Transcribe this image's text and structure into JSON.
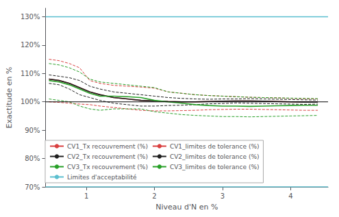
{
  "chart_data": {
    "type": "line",
    "x": [
      0.45,
      0.6,
      0.75,
      0.9,
      1.05,
      1.2,
      1.4,
      1.6,
      1.8,
      2.0,
      2.2,
      2.4,
      2.6,
      2.8,
      3.0,
      3.2,
      3.4,
      3.6,
      3.8,
      4.0,
      4.2,
      4.4
    ],
    "xlabel": "Niveau d'N en %",
    "ylabel": "Exactitude en %",
    "xlim": [
      0.4,
      4.55
    ],
    "ylim": [
      70,
      133
    ],
    "xticks": [
      1,
      2,
      3,
      4
    ],
    "yticks": [
      {
        "value": 70,
        "label": "70%"
      },
      {
        "value": 80,
        "label": "80%"
      },
      {
        "value": 90,
        "label": "90%"
      },
      {
        "value": 100,
        "label": "100%"
      },
      {
        "value": 110,
        "label": "110%"
      },
      {
        "value": 120,
        "label": "120%"
      },
      {
        "value": 130,
        "label": "130%"
      }
    ],
    "grid": false,
    "legend": "lower left",
    "series": [
      {
        "name": "CV1_Tx recouvrement (%)",
        "color": "#d94040",
        "line_style": "solid",
        "values": [
          108.0,
          107.5,
          106.5,
          105.0,
          103.5,
          102.5,
          101.5,
          101.0,
          100.5,
          100.3,
          100.1,
          100.0,
          100.0,
          100.1,
          100.2,
          100.3,
          100.3,
          100.2,
          100.1,
          100.0,
          99.9,
          99.9
        ]
      },
      {
        "name": "CV1_limites de tolerance (%)",
        "color": "#d94040",
        "line_style": "dashed",
        "values": [
          115.0,
          114.5,
          113.5,
          112.0,
          107.5,
          106.5,
          105.8,
          105.5,
          105.2,
          104.8,
          103.5,
          103.0,
          102.5,
          102.2,
          102.0,
          101.8,
          101.6,
          101.5,
          101.4,
          101.2,
          101.1,
          101.0
        ]
      },
      {
        "name": "CV1_limites de tolerance (%)",
        "color": "#d94040",
        "line_style": "dashed",
        "values": [
          100.0,
          99.8,
          99.5,
          99.2,
          99.0,
          98.5,
          98.0,
          97.5,
          97.0,
          96.8,
          96.8,
          96.9,
          97.0,
          97.2,
          97.3,
          97.4,
          97.4,
          97.3,
          97.2,
          97.1,
          97.0,
          97.0
        ]
      },
      {
        "name": "CV2_Tx recouvrement (%)",
        "color": "#202020",
        "line_style": "solid",
        "values": [
          108.0,
          107.5,
          106.5,
          105.0,
          103.5,
          102.5,
          101.5,
          101.0,
          100.5,
          100.3,
          100.1,
          100.0,
          100.0,
          100.1,
          100.2,
          100.3,
          100.3,
          100.2,
          100.1,
          100.0,
          99.9,
          99.9
        ]
      },
      {
        "name": "CV2_limites de tolerance (%)",
        "color": "#202020",
        "line_style": "dashed",
        "values": [
          109.5,
          109.0,
          108.5,
          107.5,
          105.5,
          104.5,
          103.5,
          103.0,
          102.5,
          102.0,
          101.5,
          101.2,
          101.0,
          100.9,
          101.0,
          101.0,
          101.1,
          101.0,
          100.9,
          100.8,
          100.7,
          100.6
        ]
      },
      {
        "name": "CV2_limites de tolerance (%)",
        "color": "#202020",
        "line_style": "dashed",
        "values": [
          106.5,
          106.0,
          104.5,
          102.5,
          101.5,
          100.5,
          99.5,
          99.0,
          98.5,
          98.5,
          98.7,
          98.8,
          99.0,
          99.3,
          99.4,
          99.6,
          99.5,
          99.4,
          99.3,
          99.2,
          99.1,
          99.2
        ]
      },
      {
        "name": "CV3_Tx recouvrement (%)",
        "color": "#28a028",
        "line_style": "solid",
        "values": [
          107.5,
          107.0,
          106.0,
          104.5,
          103.0,
          102.0,
          102.0,
          101.8,
          101.5,
          100.5,
          100.0,
          99.5,
          99.0,
          98.7,
          98.5,
          98.5,
          98.4,
          98.5,
          98.6,
          98.7,
          98.8,
          98.8
        ]
      },
      {
        "name": "CV3_limites de tolerance (%)",
        "color": "#28a028",
        "line_style": "dashed",
        "values": [
          113.5,
          113.0,
          112.0,
          110.5,
          108.0,
          107.0,
          106.5,
          106.0,
          105.5,
          105.0,
          103.5,
          103.0,
          102.5,
          102.2,
          102.0,
          101.8,
          101.6,
          101.5,
          101.4,
          101.3,
          101.2,
          101.1
        ]
      },
      {
        "name": "CV3_limites de tolerance (%)",
        "color": "#28a028",
        "line_style": "dashed",
        "values": [
          101.0,
          100.5,
          100.0,
          98.5,
          97.5,
          97.0,
          97.5,
          97.5,
          97.5,
          96.5,
          96.0,
          95.5,
          95.2,
          95.0,
          94.8,
          94.8,
          94.7,
          94.8,
          94.9,
          95.0,
          95.1,
          95.2
        ]
      }
    ],
    "hlines": [
      {
        "name": "Limites d'acceptabilité",
        "value": 130,
        "color": "#5bbfcf",
        "line_style": "solid"
      },
      {
        "name": "Limites d'acceptabilité",
        "value": 70,
        "color": "#5bbfcf",
        "line_style": "solid"
      },
      {
        "value": 100,
        "color": "#000000",
        "line_style": "solid"
      }
    ]
  }
}
